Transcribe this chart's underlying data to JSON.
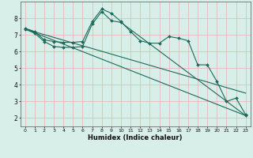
{
  "title": "",
  "xlabel": "Humidex (Indice chaleur)",
  "bg_color": "#d8eee8",
  "grid_color": "#e8b0b0",
  "line_color": "#1a6b5a",
  "xlim": [
    -0.5,
    23.5
  ],
  "ylim": [
    1.5,
    9.0
  ],
  "yticks": [
    2,
    3,
    4,
    5,
    6,
    7,
    8
  ],
  "xticks": [
    0,
    1,
    2,
    3,
    4,
    5,
    6,
    7,
    8,
    9,
    10,
    11,
    12,
    13,
    14,
    15,
    16,
    17,
    18,
    19,
    20,
    21,
    22,
    23
  ],
  "line1_x": [
    0,
    1,
    2,
    3,
    4,
    5,
    6,
    7,
    8,
    9,
    10,
    11,
    12,
    13,
    14,
    15,
    16,
    17,
    18,
    19,
    20,
    21,
    22,
    23
  ],
  "line1_y": [
    7.4,
    7.2,
    6.7,
    6.6,
    6.55,
    6.55,
    6.6,
    7.8,
    8.55,
    8.3,
    7.8,
    7.2,
    6.65,
    6.5,
    6.5,
    6.9,
    6.8,
    6.65,
    5.2,
    5.2,
    4.2,
    3.0,
    3.2,
    2.2
  ],
  "line2_x": [
    0,
    1,
    2,
    3,
    4,
    5,
    6,
    7,
    8,
    9,
    10,
    23
  ],
  "line2_y": [
    7.35,
    7.1,
    6.6,
    6.3,
    6.25,
    6.25,
    6.3,
    7.65,
    8.4,
    7.85,
    7.75,
    2.15
  ],
  "line3_x": [
    0,
    23
  ],
  "line3_y": [
    7.35,
    2.15
  ],
  "line4_x": [
    0,
    23
  ],
  "line4_y": [
    7.35,
    3.5
  ]
}
